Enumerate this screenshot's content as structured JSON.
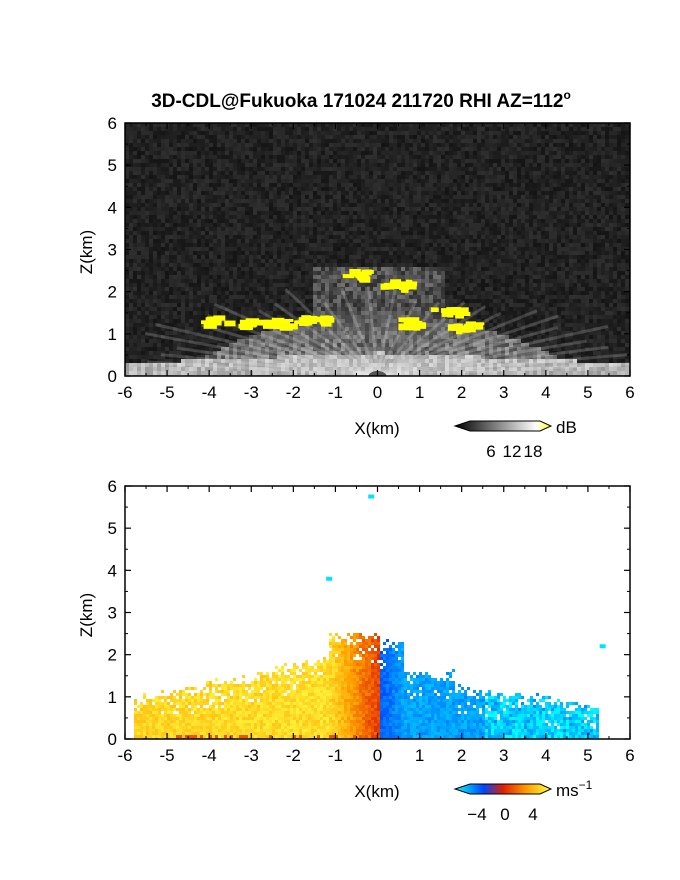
{
  "title": "3D-CDL@Fukuoka 171024 211720 RHI AZ=112",
  "title_degree": "o",
  "chart_data": [
    {
      "type": "heatmap",
      "id": "backscatter",
      "xlabel": "X(km)",
      "ylabel": "Z(km)",
      "xlim": [
        -6,
        6
      ],
      "ylim": [
        0,
        6
      ],
      "xticks": [
        "-6",
        "-5",
        "-4",
        "-3",
        "-2",
        "-1",
        "0",
        "1",
        "2",
        "3",
        "4",
        "5",
        "6"
      ],
      "yticks": [
        "0",
        "1",
        "2",
        "3",
        "4",
        "5",
        "6"
      ],
      "colorbar": {
        "unit": "dB",
        "ticks": [
          "6",
          "12",
          "18"
        ],
        "range": [
          0,
          20
        ],
        "colors": [
          "#000000",
          "#ffffff",
          "#ffff00"
        ]
      },
      "features": [
        {
          "label": "strong-echo",
          "x": -3.9,
          "z": 1.35
        },
        {
          "label": "strong-echo",
          "x": -3.0,
          "z": 1.3
        },
        {
          "label": "strong-echo",
          "x": -2.3,
          "z": 1.3
        },
        {
          "label": "strong-echo",
          "x": -1.6,
          "z": 1.35
        },
        {
          "label": "strong-echo",
          "x": -0.6,
          "z": 2.45
        },
        {
          "label": "strong-echo",
          "x": 0.4,
          "z": 2.2
        },
        {
          "label": "strong-echo",
          "x": 0.8,
          "z": 1.3
        },
        {
          "label": "strong-echo",
          "x": 1.6,
          "z": 1.6
        },
        {
          "label": "strong-echo",
          "x": 2.0,
          "z": 1.2
        }
      ]
    },
    {
      "type": "heatmap",
      "id": "velocity",
      "xlabel": "X(km)",
      "ylabel": "Z(km)",
      "xlim": [
        -6,
        6
      ],
      "ylim": [
        0,
        6
      ],
      "xticks": [
        "-6",
        "-5",
        "-4",
        "-3",
        "-2",
        "-1",
        "0",
        "1",
        "2",
        "3",
        "4",
        "5",
        "6"
      ],
      "yticks": [
        "0",
        "1",
        "2",
        "3",
        "4",
        "5",
        "6"
      ],
      "colorbar": {
        "unit": "ms",
        "unit_exponent": "−1",
        "ticks": [
          "−4",
          "0",
          "4"
        ],
        "range": [
          -5,
          5
        ],
        "colors": [
          "#00ffff",
          "#0044ff",
          "#e02000",
          "#ffa000",
          "#ffff40"
        ]
      },
      "isolated_points": [
        {
          "x": -0.15,
          "z": 5.75
        },
        {
          "x": -1.15,
          "z": 3.8
        },
        {
          "x": 5.35,
          "z": 2.2
        }
      ]
    }
  ]
}
